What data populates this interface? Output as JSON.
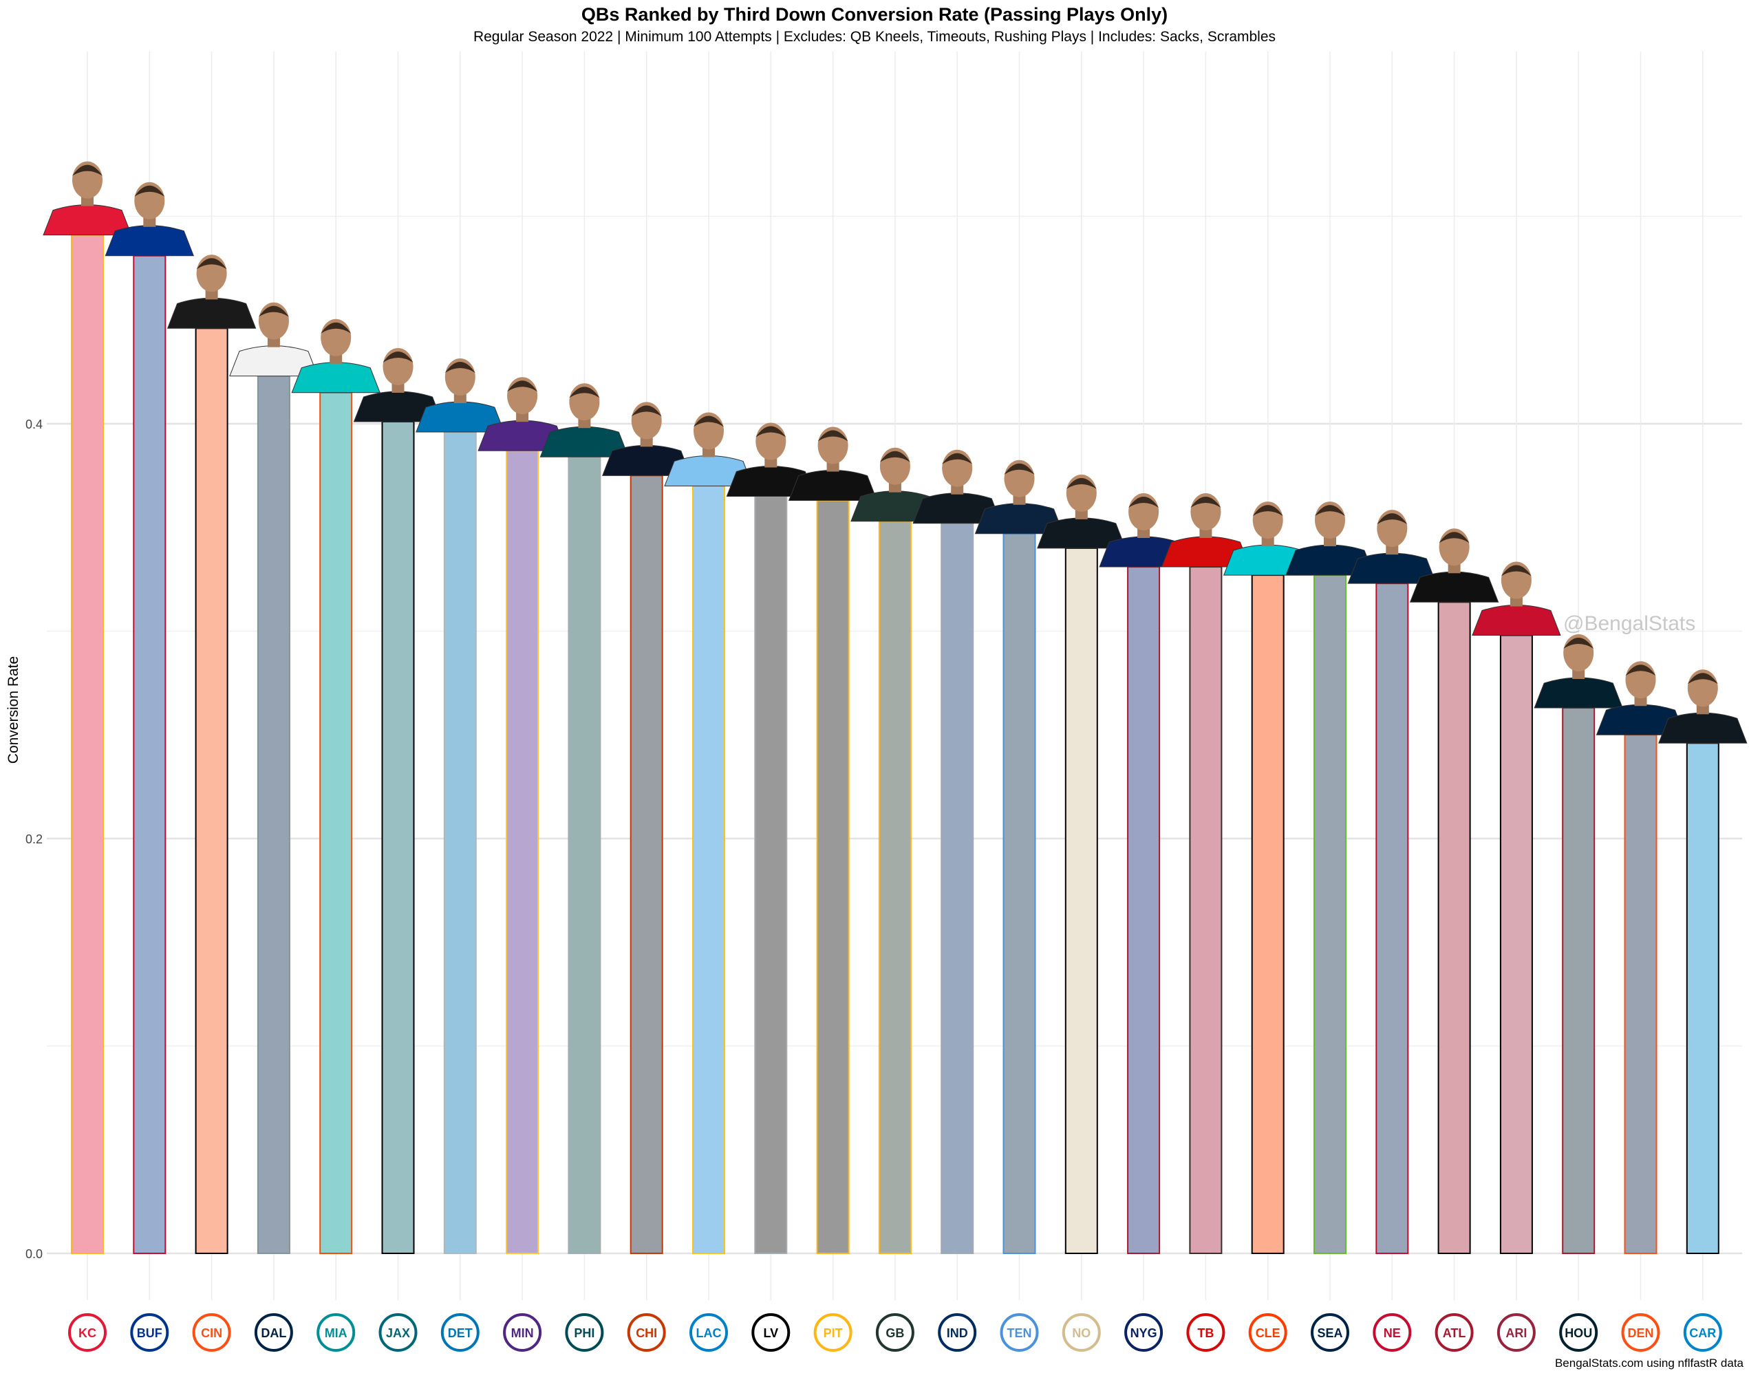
{
  "chart_data": {
    "type": "bar",
    "title": "QBs Ranked by Third Down Conversion Rate (Passing Plays Only)",
    "subtitle": "Regular Season 2022 | Minimum 100 Attempts | Excludes: QB Kneels, Timeouts, Rushing Plays | Includes: Sacks, Scrambles",
    "xlabel": "",
    "ylabel": "Conversion Rate",
    "ylim": [
      0,
      0.52
    ],
    "yticks": [
      "0.0",
      "0.2",
      "0.4"
    ],
    "grid": true,
    "categories": [
      "KC",
      "BUF",
      "CIN",
      "DAL",
      "MIA",
      "JAX",
      "DET",
      "MIN",
      "PHI",
      "CHI",
      "LAC",
      "LV",
      "PIT",
      "GB",
      "IND",
      "TEN",
      "NO",
      "NYG",
      "TB",
      "CLE",
      "SEA",
      "NE",
      "ATL",
      "ARI",
      "HOU",
      "DEN",
      "CAR"
    ],
    "values": [
      0.491,
      0.481,
      0.446,
      0.423,
      0.415,
      0.401,
      0.396,
      0.387,
      0.384,
      0.375,
      0.37,
      0.365,
      0.363,
      0.353,
      0.352,
      0.347,
      0.34,
      0.331,
      0.331,
      0.327,
      0.327,
      0.323,
      0.314,
      0.298,
      0.263,
      0.25,
      0.246
    ],
    "fill_colors": [
      "#f4a3b0",
      "#9aafd0",
      "#fdb8a0",
      "#96a3b3",
      "#8fd3d0",
      "#99bfc2",
      "#96c5e0",
      "#b6a6d0",
      "#99b3b3",
      "#9a9ea5",
      "#9ccdee",
      "#999999",
      "#999999",
      "#a3aca6",
      "#98a9c0",
      "#98a6b3",
      "#ede5d5",
      "#9aa3c3",
      "#dba3ad",
      "#ffad8f",
      "#99a5b0",
      "#99a5b8",
      "#dba5ae",
      "#d9aab4",
      "#99a3aa",
      "#99a3b2",
      "#96cde9"
    ],
    "outline_colors": [
      "#FFB81C",
      "#C60C30",
      "#000000",
      "#869397",
      "#FC4C02",
      "#000000",
      "#B0B7BC",
      "#FFC62F",
      "#A5ACAF",
      "#C83803",
      "#FFC20E",
      "#A5ACAF",
      "#FFB612",
      "#FFB612",
      "#A2AAAD",
      "#4B92DB",
      "#000000",
      "#A71930",
      "#34302B",
      "#000000",
      "#69BE28",
      "#C60C30",
      "#000000",
      "#000000",
      "#A71930",
      "#FB4F14",
      "#000000"
    ],
    "jersey_colors": [
      "#E31837",
      "#00338D",
      "#1a1a1a",
      "#f2f2f2",
      "#00C4C0",
      "#101820",
      "#0076B6",
      "#4F2683",
      "#004C54",
      "#0B162A",
      "#80C2F0",
      "#101010",
      "#101010",
      "#203731",
      "#101820",
      "#0C2340",
      "#101820",
      "#0B2265",
      "#D50A0A",
      "#00C8D0",
      "#002244",
      "#002244",
      "#101010",
      "#C8102E",
      "#03202F",
      "#002244",
      "#101820"
    ],
    "logo_colors": [
      "#E31837",
      "#00338D",
      "#FB4F14",
      "#002244",
      "#008E97",
      "#006778",
      "#0076B6",
      "#4F2683",
      "#004C54",
      "#C83803",
      "#0080C6",
      "#000000",
      "#FFB612",
      "#203731",
      "#002C5F",
      "#4B92DB",
      "#D3BC8D",
      "#0B2265",
      "#D50A0A",
      "#FF3C00",
      "#002244",
      "#C60C30",
      "#A71930",
      "#97233F",
      "#03202F",
      "#FB4F14",
      "#0085CA"
    ]
  },
  "watermark": "@BengalStats",
  "footer": "BengalStats.com using nflfastR data"
}
